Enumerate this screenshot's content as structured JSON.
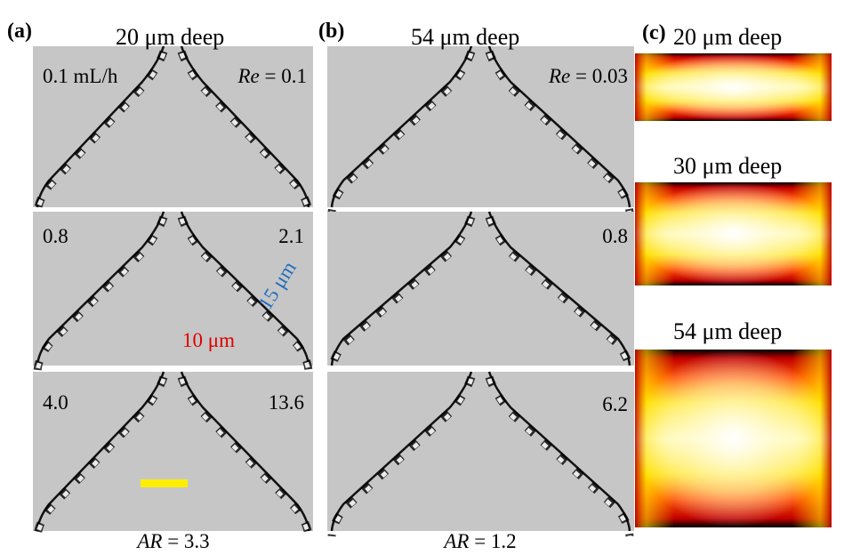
{
  "panels": [
    {
      "label": "(a)",
      "title": "20 μm deep",
      "footer": {
        "symbol": "AR",
        "text": " = 3.3"
      },
      "rows": [
        {
          "left": "0.1 mL/h",
          "right_symbol": "Re",
          "right": " = 0.1"
        },
        {
          "left": "0.8",
          "right": "2.1",
          "annotations": [
            "15 μm",
            "10 μm"
          ]
        },
        {
          "left": "4.0",
          "right": "13.6"
        }
      ]
    },
    {
      "label": "(b)",
      "title": "54 μm deep",
      "footer": {
        "symbol": "AR",
        "text": " = 1.2"
      },
      "rows": [
        {
          "right_symbol": "Re",
          "right": " = 0.03"
        },
        {
          "right": "0.8"
        },
        {
          "right": "6.2"
        }
      ]
    },
    {
      "label": "(c)",
      "profiles": [
        "20 μm deep",
        "30 μm deep",
        "54 μm deep"
      ]
    }
  ]
}
